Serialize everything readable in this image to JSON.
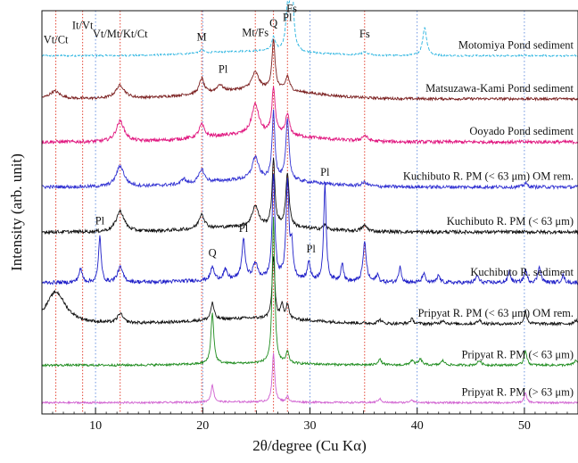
{
  "chart_data": {
    "type": "line",
    "xlabel": "2θ/degree (Cu Kα)",
    "ylabel": "Intensity (arb. unit)",
    "xlim": [
      5,
      55
    ],
    "xticks": [
      10,
      20,
      30,
      40,
      50
    ],
    "x_gridlines": [
      10,
      20,
      30,
      40,
      50
    ],
    "reference_lines": {
      "color": "#e0301e",
      "positions": [
        6.3,
        8.8,
        12.3,
        19.9,
        24.9,
        26.6,
        27.9,
        35.1
      ]
    },
    "reference_labels": [
      {
        "text": "Vt/Ct",
        "x": 6.3,
        "level": 0.33
      },
      {
        "text": "It/Vt",
        "x": 8.8,
        "level": 0.71
      },
      {
        "text": "Vt/Mt/Kt/Ct",
        "x": 12.3,
        "level": 0.49
      },
      {
        "text": "M",
        "x": 19.9,
        "level": 0.4
      },
      {
        "text": "Mt/Fs",
        "x": 24.9,
        "level": 0.52
      },
      {
        "text": "Q",
        "x": 26.6,
        "level": 0.77
      },
      {
        "text": "Pl",
        "x": 27.9,
        "level": 0.93
      },
      {
        "text": "Fs",
        "x": 28.3,
        "level": 1.16
      },
      {
        "text": "Fs",
        "x": 35.1,
        "level": 0.49
      }
    ],
    "series": [
      {
        "name": "Motomiya Pond sediment",
        "color": "#2ab4e0",
        "style": "dashed",
        "baseline": 8.1,
        "noise": 0.045,
        "hump": 0.12,
        "peaks": [
          [
            26.6,
            0.35,
            0.2
          ],
          [
            27.9,
            1.0,
            0.2
          ],
          [
            28.3,
            1.95,
            0.18
          ],
          [
            40.7,
            0.75,
            0.22
          ],
          [
            19.9,
            0.08,
            0.3
          ],
          [
            35.1,
            0.08,
            0.3
          ]
        ],
        "annotations": []
      },
      {
        "name": "Matsuzawa-Kami Pond sediment",
        "color": "#7a1f1f",
        "style": "solid",
        "baseline": 6.95,
        "noise": 0.07,
        "hump": 0.25,
        "peaks": [
          [
            6.2,
            0.2,
            0.6
          ],
          [
            12.3,
            0.35,
            0.5
          ],
          [
            19.9,
            0.4,
            0.25
          ],
          [
            21.6,
            0.18,
            0.3
          ],
          [
            24.9,
            0.45,
            0.4
          ],
          [
            26.6,
            1.3,
            0.18
          ],
          [
            27.9,
            0.38,
            0.22
          ]
        ],
        "annotations": [
          {
            "text": "Pl",
            "x": 21.9,
            "dy": 0.7
          }
        ]
      },
      {
        "name": "Ooyado Pond sediment",
        "color": "#e0167f",
        "style": "solid",
        "baseline": 5.8,
        "noise": 0.09,
        "hump": 0.2,
        "peaks": [
          [
            12.3,
            0.55,
            0.45
          ],
          [
            19.9,
            0.35,
            0.3
          ],
          [
            24.9,
            0.8,
            0.4
          ],
          [
            26.6,
            1.25,
            0.18
          ],
          [
            27.9,
            0.55,
            0.22
          ],
          [
            35.1,
            0.15,
            0.3
          ]
        ],
        "annotations": []
      },
      {
        "name": "Kuchibuto R. PM (< 63 μm) OM rem.",
        "color": "#3232d2",
        "style": "solid",
        "baseline": 4.6,
        "noise": 0.09,
        "hump": 0.2,
        "peaks": [
          [
            12.3,
            0.55,
            0.45
          ],
          [
            18.2,
            0.15,
            0.2
          ],
          [
            19.9,
            0.35,
            0.3
          ],
          [
            24.9,
            0.6,
            0.35
          ],
          [
            26.6,
            1.8,
            0.16
          ],
          [
            27.9,
            1.6,
            0.18
          ],
          [
            35.1,
            0.1,
            0.3
          ],
          [
            50.1,
            0.1,
            0.2
          ]
        ],
        "annotations": []
      },
      {
        "name": "Kuchibuto R. PM (< 63 μm)",
        "color": "#111111",
        "style": "solid",
        "baseline": 3.4,
        "noise": 0.09,
        "hump": 0.15,
        "peaks": [
          [
            12.3,
            0.55,
            0.45
          ],
          [
            19.9,
            0.4,
            0.3
          ],
          [
            24.9,
            0.55,
            0.35
          ],
          [
            26.6,
            1.75,
            0.16
          ],
          [
            27.9,
            1.45,
            0.18
          ],
          [
            31.4,
            0.12,
            0.2
          ],
          [
            35.1,
            0.15,
            0.3
          ]
        ],
        "annotations": []
      },
      {
        "name": "Kuchibuto R. sediment",
        "color": "#1e1ec8",
        "style": "solid",
        "baseline": 2.05,
        "noise": 0.1,
        "hump": 0.1,
        "peaks": [
          [
            8.6,
            0.35,
            0.2
          ],
          [
            10.4,
            1.25,
            0.14
          ],
          [
            12.3,
            0.4,
            0.3
          ],
          [
            20.9,
            0.35,
            0.18
          ],
          [
            22.1,
            0.25,
            0.2
          ],
          [
            23.8,
            1.05,
            0.18
          ],
          [
            24.9,
            0.4,
            0.25
          ],
          [
            26.6,
            2.75,
            0.15
          ],
          [
            27.9,
            2.55,
            0.16
          ],
          [
            28.3,
            0.8,
            0.15
          ],
          [
            29.9,
            0.5,
            0.15
          ],
          [
            31.4,
            2.55,
            0.14
          ],
          [
            33.0,
            0.5,
            0.14
          ],
          [
            35.1,
            1.05,
            0.18
          ],
          [
            36.3,
            0.2,
            0.15
          ],
          [
            38.4,
            0.45,
            0.14
          ],
          [
            40.6,
            0.25,
            0.15
          ],
          [
            42.0,
            0.2,
            0.15
          ],
          [
            45.6,
            0.2,
            0.15
          ],
          [
            48.6,
            0.3,
            0.15
          ],
          [
            50.1,
            0.35,
            0.15
          ],
          [
            51.4,
            0.45,
            0.15
          ],
          [
            53.6,
            0.2,
            0.15
          ]
        ],
        "annotations": [
          {
            "text": "Pl",
            "x": 10.4,
            "dy": 1.55
          },
          {
            "text": "Q",
            "x": 20.9,
            "dy": 0.7
          },
          {
            "text": "Pl",
            "x": 23.8,
            "dy": 1.35
          },
          {
            "text": "Pl",
            "x": 30.1,
            "dy": 0.8
          },
          {
            "text": "Pl",
            "x": 31.4,
            "dy": 2.85
          }
        ]
      },
      {
        "name": "Pripyat R. PM (< 63 μm) OM rem.",
        "color": "#111111",
        "style": "solid",
        "baseline": 0.95,
        "noise": 0.08,
        "hump": 0.15,
        "peaks": [
          [
            6.3,
            0.85,
            1.1
          ],
          [
            12.3,
            0.25,
            0.3
          ],
          [
            20.9,
            0.45,
            0.18
          ],
          [
            26.6,
            1.65,
            0.15
          ],
          [
            27.4,
            0.35,
            0.15
          ],
          [
            27.9,
            0.4,
            0.15
          ],
          [
            36.5,
            0.1,
            0.2
          ],
          [
            39.5,
            0.12,
            0.2
          ],
          [
            42.4,
            0.1,
            0.2
          ],
          [
            45.8,
            0.1,
            0.2
          ],
          [
            50.1,
            0.35,
            0.15
          ],
          [
            54.8,
            0.1,
            0.2
          ]
        ],
        "annotations": []
      },
      {
        "name": "Pripyat R. PM (< 63 μm)",
        "color": "#1e8c1e",
        "style": "solid",
        "baseline": -0.15,
        "noise": 0.06,
        "hump": 0.05,
        "peaks": [
          [
            20.9,
            1.35,
            0.16
          ],
          [
            26.6,
            3.9,
            0.14
          ],
          [
            27.9,
            0.3,
            0.15
          ],
          [
            36.5,
            0.15,
            0.2
          ],
          [
            39.5,
            0.12,
            0.2
          ],
          [
            40.3,
            0.15,
            0.2
          ],
          [
            42.4,
            0.12,
            0.2
          ],
          [
            45.8,
            0.12,
            0.2
          ],
          [
            50.1,
            0.4,
            0.15
          ],
          [
            54.8,
            0.12,
            0.2
          ]
        ],
        "annotations": []
      },
      {
        "name": "Pripyat R. PM (> 63 μm)",
        "color": "#d060d0",
        "style": "solid",
        "baseline": -1.15,
        "noise": 0.05,
        "hump": 0.02,
        "peaks": [
          [
            20.9,
            0.45,
            0.16
          ],
          [
            26.6,
            1.3,
            0.14
          ],
          [
            27.9,
            0.15,
            0.15
          ],
          [
            36.5,
            0.1,
            0.2
          ],
          [
            39.5,
            0.08,
            0.2
          ],
          [
            50.1,
            0.25,
            0.15
          ]
        ],
        "annotations": []
      }
    ]
  }
}
